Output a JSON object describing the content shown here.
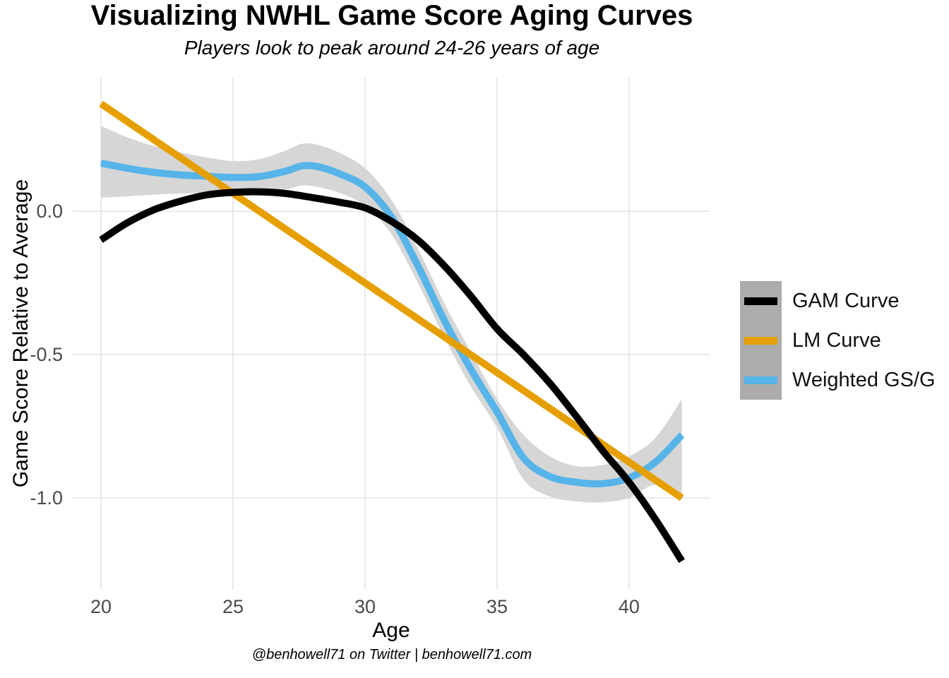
{
  "header": {
    "title": "Visualizing NWHL Game Score Aging Curves",
    "subtitle": "Players look to peak around 24-26 years of age"
  },
  "caption": "@benhowell71 on Twitter | benhowell71.com",
  "axes": {
    "x_title": "Age",
    "y_title": "Game Score Relative to Average",
    "x_tick_labels": [
      "20",
      "25",
      "30",
      "35",
      "40"
    ],
    "y_tick_labels": [
      "0.0",
      "-0.5",
      "-1.0"
    ]
  },
  "legend": {
    "key_background": "#ACACAC",
    "items": [
      {
        "label": "GAM Curve",
        "color": "#000000"
      },
      {
        "label": "LM Curve",
        "color": "#E69F00"
      },
      {
        "label": "Weighted GS/G",
        "color": "#56B4E9"
      }
    ]
  },
  "colors": {
    "background": "#FFFFFF",
    "gridline": "#E9E9E9",
    "tick_text": "#4A4A4A",
    "ribbon": "#D6D6D6",
    "gam": "#000000",
    "lm": "#E69F00",
    "weighted": "#56B4E9"
  },
  "chart_data": {
    "type": "line",
    "title": "Visualizing NWHL Game Score Aging Curves",
    "subtitle": "Players look to peak around 24-26 years of age",
    "xlabel": "Age",
    "ylabel": "Game Score Relative to Average",
    "xlim": [
      18.93,
      43.05
    ],
    "ylim": [
      -1.32,
      0.466
    ],
    "x_ticks": [
      20,
      25,
      30,
      35,
      40
    ],
    "y_ticks": [
      0.0,
      -0.5,
      -1.0
    ],
    "grid": "major gridlines only, light gray on white",
    "legend_position": "right",
    "series": [
      {
        "name": "GAM Curve",
        "color": "#000000",
        "width": 10,
        "x": [
          20,
          21,
          22,
          23,
          24,
          25,
          26,
          27,
          28,
          29,
          30,
          31,
          32,
          33,
          34,
          35,
          36,
          37,
          38,
          39,
          40,
          41,
          42
        ],
        "y": [
          -0.1,
          -0.04,
          0.005,
          0.035,
          0.057,
          0.066,
          0.068,
          0.062,
          0.048,
          0.032,
          0.012,
          -0.035,
          -0.1,
          -0.19,
          -0.295,
          -0.41,
          -0.5,
          -0.6,
          -0.715,
          -0.835,
          -0.945,
          -1.075,
          -1.22
        ]
      },
      {
        "name": "LM Curve",
        "color": "#E69F00",
        "width": 10,
        "x": [
          20,
          42
        ],
        "y": [
          0.375,
          -1.0
        ]
      },
      {
        "name": "Weighted GS/G",
        "color": "#56B4E9",
        "width": 10,
        "x": [
          20,
          21,
          22,
          23,
          24,
          25,
          26,
          27,
          27.6,
          28.2,
          29,
          30,
          31,
          32,
          33,
          34,
          35,
          36,
          37,
          38,
          39,
          40,
          41,
          42
        ],
        "y": [
          0.168,
          0.15,
          0.136,
          0.127,
          0.122,
          0.118,
          0.121,
          0.14,
          0.158,
          0.156,
          0.132,
          0.085,
          -0.02,
          -0.19,
          -0.38,
          -0.55,
          -0.7,
          -0.86,
          -0.925,
          -0.945,
          -0.95,
          -0.93,
          -0.875,
          -0.78
        ],
        "ribbon": {
          "color": "#D6D6D6",
          "upper": [
            0.298,
            0.258,
            0.228,
            0.205,
            0.188,
            0.175,
            0.182,
            0.212,
            0.235,
            0.232,
            0.205,
            0.15,
            0.04,
            -0.13,
            -0.32,
            -0.49,
            -0.655,
            -0.78,
            -0.855,
            -0.889,
            -0.885,
            -0.855,
            -0.79,
            -0.655
          ],
          "lower": [
            0.048,
            0.052,
            0.058,
            0.062,
            0.064,
            0.064,
            0.068,
            0.076,
            0.09,
            0.085,
            0.065,
            0.02,
            -0.08,
            -0.25,
            -0.44,
            -0.61,
            -0.755,
            -0.935,
            -0.995,
            -1.012,
            -1.015,
            -1.0,
            -0.955,
            -1.005
          ]
        }
      }
    ]
  }
}
